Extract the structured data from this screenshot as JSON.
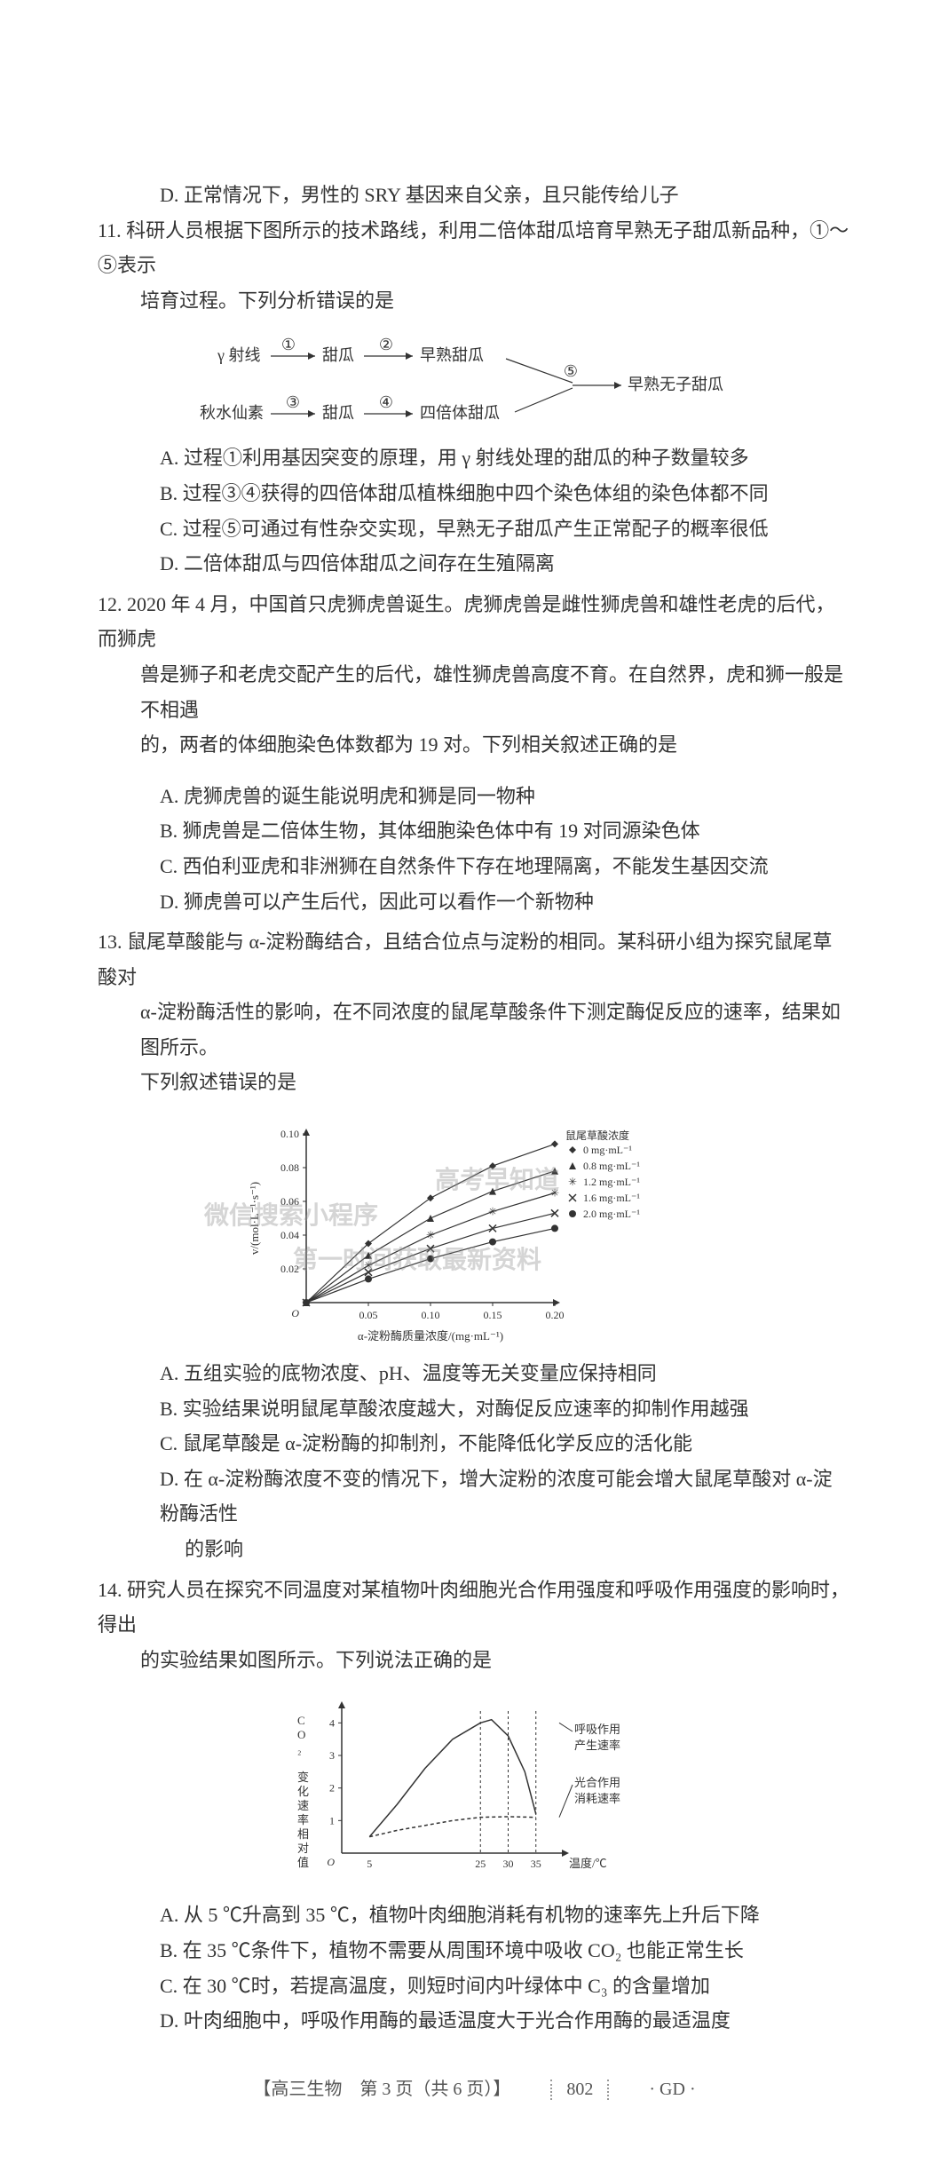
{
  "q10_optD": "D. 正常情况下，男性的 SRY 基因来自父亲，且只能传给儿子",
  "q11": {
    "stem1": "11. 科研人员根据下图所示的技术路线，利用二倍体甜瓜培育早熟无子甜瓜新品种，①～⑤表示",
    "stem2": "培育过程。下列分析错误的是",
    "diagram": {
      "labels": {
        "gamma": "γ 射线",
        "melon1": "甜瓜",
        "early": "早熟甜瓜",
        "qss": "秋水仙素",
        "melon2": "甜瓜",
        "tetra": "四倍体甜瓜",
        "result": "早熟无子甜瓜",
        "c1": "①",
        "c2": "②",
        "c3": "③",
        "c4": "④",
        "c5": "⑤"
      },
      "colors": {
        "line": "#333333",
        "text": "#333333"
      }
    },
    "A": "A. 过程①利用基因突变的原理，用 γ 射线处理的甜瓜的种子数量较多",
    "B": "B. 过程③④获得的四倍体甜瓜植株细胞中四个染色体组的染色体都不同",
    "C": "C. 过程⑤可通过有性杂交实现，早熟无子甜瓜产生正常配子的概率很低",
    "D": "D. 二倍体甜瓜与四倍体甜瓜之间存在生殖隔离"
  },
  "q12": {
    "stem1": "12. 2020 年 4 月，中国首只虎狮虎兽诞生。虎狮虎兽是雌性狮虎兽和雄性老虎的后代，而狮虎",
    "stem2": "兽是狮子和老虎交配产生的后代，雄性狮虎兽高度不育。在自然界，虎和狮一般是不相遇",
    "stem3": "的，两者的体细胞染色体数都为 19 对。下列相关叙述正确的是",
    "A": "A. 虎狮虎兽的诞生能说明虎和狮是同一物种",
    "B": "B. 狮虎兽是二倍体生物，其体细胞染色体中有 19 对同源染色体",
    "C": "C. 西伯利亚虎和非洲狮在自然条件下存在地理隔离，不能发生基因交流",
    "D": "D. 狮虎兽可以产生后代，因此可以看作一个新物种"
  },
  "q13": {
    "stem1": "13. 鼠尾草酸能与 α-淀粉酶结合，且结合位点与淀粉的相同。某科研小组为探究鼠尾草酸对",
    "stem2": "α-淀粉酶活性的影响，在不同浓度的鼠尾草酸条件下测定酶促反应的速率，结果如图所示。",
    "stem3": "下列叙述错误的是",
    "chart": {
      "type": "scatter-line",
      "xlabel": "α-淀粉酶质量浓度/(mg·mL⁻¹)",
      "ylabel": "v/(mol·L⁻¹·s⁻¹)",
      "xlim": [
        0,
        0.2
      ],
      "ylim": [
        0,
        0.1
      ],
      "xticks": [
        0,
        0.05,
        0.1,
        0.15,
        0.2
      ],
      "yticks": [
        0.02,
        0.04,
        0.06,
        0.08,
        0.1
      ],
      "legend_title": "鼠尾草酸浓度",
      "series": [
        {
          "label": "0 mg·mL⁻¹",
          "marker": "diamond",
          "color": "#333333",
          "points": [
            [
              0,
              0
            ],
            [
              0.05,
              0.035
            ],
            [
              0.1,
              0.062
            ],
            [
              0.15,
              0.081
            ],
            [
              0.2,
              0.094
            ]
          ]
        },
        {
          "label": "0.8 mg·mL⁻¹",
          "marker": "triangle",
          "color": "#333333",
          "points": [
            [
              0,
              0
            ],
            [
              0.05,
              0.028
            ],
            [
              0.1,
              0.05
            ],
            [
              0.15,
              0.066
            ],
            [
              0.2,
              0.078
            ]
          ]
        },
        {
          "label": "1.2 mg·mL⁻¹",
          "marker": "star",
          "color": "#333333",
          "points": [
            [
              0,
              0
            ],
            [
              0.05,
              0.022
            ],
            [
              0.1,
              0.04
            ],
            [
              0.15,
              0.054
            ],
            [
              0.2,
              0.065
            ]
          ]
        },
        {
          "label": "1.6 mg·mL⁻¹",
          "marker": "x",
          "color": "#333333",
          "points": [
            [
              0,
              0
            ],
            [
              0.05,
              0.018
            ],
            [
              0.1,
              0.032
            ],
            [
              0.15,
              0.044
            ],
            [
              0.2,
              0.053
            ]
          ]
        },
        {
          "label": "2.0 mg·mL⁻¹",
          "marker": "circle",
          "color": "#333333",
          "points": [
            [
              0,
              0
            ],
            [
              0.05,
              0.014
            ],
            [
              0.1,
              0.026
            ],
            [
              0.15,
              0.036
            ],
            [
              0.2,
              0.044
            ]
          ]
        }
      ],
      "background_color": "#ffffff",
      "axis_color": "#333333",
      "fontsize": 12
    },
    "A": "A. 五组实验的底物浓度、pH、温度等无关变量应保持相同",
    "B": "B. 实验结果说明鼠尾草酸浓度越大，对酶促反应速率的抑制作用越强",
    "C": "C. 鼠尾草酸是 α-淀粉酶的抑制剂，不能降低化学反应的活化能",
    "D1": "D. 在 α-淀粉酶浓度不变的情况下，增大淀粉的浓度可能会增大鼠尾草酸对 α-淀粉酶活性",
    "D2": "的影响"
  },
  "q14": {
    "stem1": "14. 研究人员在探究不同温度对某植物叶肉细胞光合作用强度和呼吸作用强度的影响时，得出",
    "stem2": "的实验结果如图所示。下列说法正确的是",
    "chart": {
      "type": "line",
      "xlabel": "温度/℃",
      "ylabel": "CO₂ 变化速率相对值",
      "xticks": [
        5,
        25,
        30,
        35
      ],
      "yticks": [
        0,
        1,
        2,
        3,
        4
      ],
      "xlim": [
        0,
        40
      ],
      "ylim": [
        0,
        4.5
      ],
      "series": [
        {
          "label": "呼吸作用产生速率",
          "style": "solid",
          "color": "#333333",
          "points": [
            [
              5,
              0.5
            ],
            [
              10,
              1.5
            ],
            [
              15,
              2.6
            ],
            [
              20,
              3.5
            ],
            [
              25,
              4.0
            ],
            [
              27,
              4.1
            ],
            [
              30,
              3.6
            ],
            [
              33,
              2.5
            ],
            [
              35,
              1.2
            ]
          ]
        },
        {
          "label": "光合作用消耗速率",
          "style": "dashed",
          "color": "#333333",
          "points": [
            [
              5,
              0.5
            ],
            [
              10,
              0.7
            ],
            [
              15,
              0.85
            ],
            [
              20,
              1.0
            ],
            [
              25,
              1.1
            ],
            [
              30,
              1.12
            ],
            [
              35,
              1.1
            ]
          ]
        }
      ],
      "vline_positions": [
        25,
        30,
        35
      ],
      "background_color": "#ffffff",
      "axis_color": "#333333",
      "fontsize": 12,
      "legend_labels": {
        "resp1": "呼吸作用",
        "resp2": "产生速率",
        "photo1": "光合作用",
        "photo2": "消耗速率"
      }
    },
    "A": "A. 从 5 ℃升高到 35 ℃，植物叶肉细胞消耗有机物的速率先上升后下降",
    "B": "B. 在 35 ℃条件下，植物不需要从周围环境中吸收 CO₂ 也能正常生长",
    "C": "C. 在 30 ℃时，若提高温度，则短时间内叶绿体中 C₃ 的含量增加",
    "D": "D. 叶肉细胞中，呼吸作用酶的最适温度大于光合作用酶的最适温度"
  },
  "footer": {
    "exam": "【高三生物　第 3 页（共 6 页）】",
    "code": "802",
    "right": "· GD ·"
  },
  "watermarks": {
    "w1": "微信搜索小程序",
    "w2": "高考早知道",
    "w3": "第一时间获取最新资料"
  }
}
